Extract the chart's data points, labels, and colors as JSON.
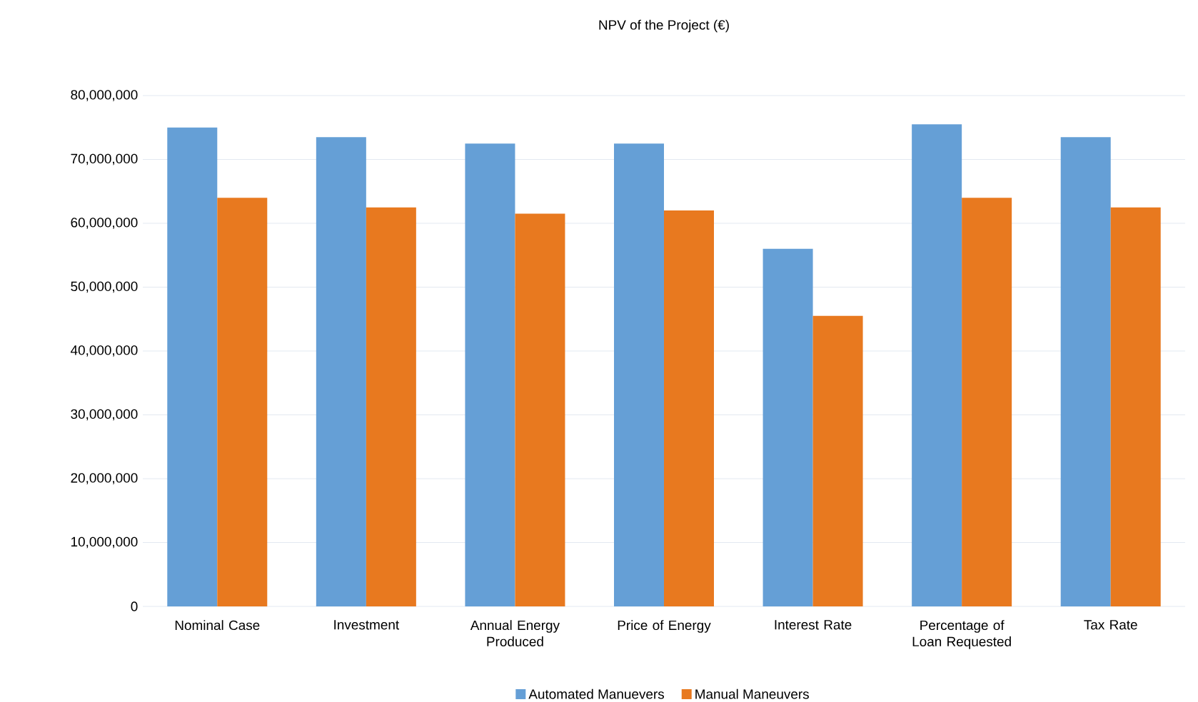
{
  "chart_data": {
    "type": "bar",
    "title": "NPV of the Project (€)",
    "categories": [
      "Nominal Case",
      "Investment",
      "Annual Energy Produced",
      "Price of Energy",
      "Interest Rate",
      "Percentage of Loan Requested",
      "Tax Rate"
    ],
    "series": [
      {
        "name": "Automated Manuevers",
        "color": "#659fd6",
        "values": [
          75000000,
          73500000,
          72500000,
          72500000,
          56000000,
          75500000,
          73500000
        ]
      },
      {
        "name": "Manual Maneuvers",
        "color": "#e8791f",
        "values": [
          64000000,
          62500000,
          61500000,
          62000000,
          45500000,
          64000000,
          62500000
        ]
      }
    ],
    "ylim": [
      0,
      80000000
    ],
    "yticks": [
      0,
      {
        "value": 10000000,
        "label": "10,000,000"
      },
      {
        "value": 20000000,
        "label": "20,000,000"
      },
      {
        "value": 30000000,
        "label": "30,000,000"
      },
      {
        "value": 40000000,
        "label": "40,000,000"
      },
      {
        "value": 50000000,
        "label": "50,000,000"
      },
      {
        "value": 60000000,
        "label": "60,000,000"
      },
      {
        "value": 70000000,
        "label": "70,000,000"
      },
      {
        "value": 80000000,
        "label": "80,000,000"
      }
    ],
    "grid": "y",
    "legend": "bottom"
  }
}
